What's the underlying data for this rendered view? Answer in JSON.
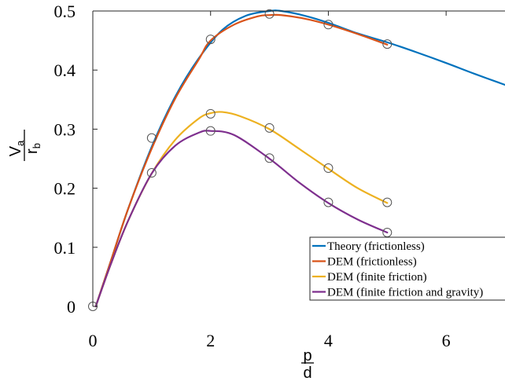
{
  "chart_data": {
    "type": "line",
    "xlim": [
      0,
      7
    ],
    "ylim": [
      0,
      0.5
    ],
    "xticks": [
      0,
      2,
      4,
      6
    ],
    "xtick_labels": [
      "0",
      "2",
      "4",
      "6"
    ],
    "yticks": [
      0,
      0.1,
      0.2,
      0.3,
      0.4,
      0.5
    ],
    "ytick_labels": [
      "0",
      "0.1",
      "0.2",
      "0.3",
      "0.4",
      "0.5"
    ],
    "xlabel": {
      "numerator": "p",
      "denominator": "d"
    },
    "ylabel": {
      "numerator": "V",
      "numerator_sub": "a",
      "denominator": "r",
      "denominator_sub": "b"
    },
    "grid": false,
    "legend_position": "bottom-right",
    "series": [
      {
        "name": "Theory (frictionless)",
        "color": "#0072BD",
        "x": [
          0.05,
          0.3,
          0.6,
          1.0,
          1.4,
          1.8,
          2.2,
          2.6,
          3.0,
          3.2,
          3.6,
          4.0,
          4.5,
          5.0,
          5.5,
          6.0,
          6.5,
          7.0
        ],
        "y": [
          0,
          0.075,
          0.165,
          0.27,
          0.355,
          0.42,
          0.468,
          0.492,
          0.5,
          0.5,
          0.492,
          0.48,
          0.462,
          0.447,
          0.43,
          0.412,
          0.393,
          0.375
        ],
        "markers": false
      },
      {
        "name": "DEM (frictionless)",
        "color": "#D95319",
        "x": [
          0.05,
          0.3,
          0.6,
          1.0,
          1.4,
          1.8,
          2.0,
          2.4,
          2.8,
          3.0,
          3.2,
          3.6,
          4.0,
          4.5,
          5.0
        ],
        "y": [
          0,
          0.075,
          0.165,
          0.267,
          0.352,
          0.418,
          0.45,
          0.477,
          0.491,
          0.493,
          0.493,
          0.487,
          0.477,
          0.461,
          0.443
        ],
        "markers": false
      },
      {
        "name": "DEM (finite friction)",
        "color": "#EDB120",
        "x": [
          0.05,
          0.3,
          0.6,
          1.0,
          1.4,
          1.8,
          2.0,
          2.2,
          2.5,
          3.0,
          3.5,
          4.0,
          4.5,
          5.0
        ],
        "y": [
          0,
          0.07,
          0.145,
          0.225,
          0.282,
          0.318,
          0.327,
          0.329,
          0.322,
          0.3,
          0.267,
          0.233,
          0.2,
          0.175
        ],
        "markers": false
      },
      {
        "name": "DEM (finite friction and gravity)",
        "color": "#7E2F8E",
        "x": [
          0.05,
          0.3,
          0.6,
          1.0,
          1.4,
          1.8,
          2.0,
          2.4,
          3.0,
          3.5,
          4.0,
          4.5,
          5.0
        ],
        "y": [
          0,
          0.07,
          0.145,
          0.225,
          0.272,
          0.294,
          0.297,
          0.29,
          0.25,
          0.21,
          0.175,
          0.147,
          0.125
        ],
        "markers": false
      }
    ],
    "data_points": [
      {
        "x": 0,
        "y": 0
      },
      {
        "x": 1,
        "y": 0.285
      },
      {
        "x": 1,
        "y": 0.226
      },
      {
        "x": 2,
        "y": 0.452
      },
      {
        "x": 2,
        "y": 0.326
      },
      {
        "x": 2,
        "y": 0.297
      },
      {
        "x": 3,
        "y": 0.495
      },
      {
        "x": 3,
        "y": 0.302
      },
      {
        "x": 3,
        "y": 0.251
      },
      {
        "x": 4,
        "y": 0.477
      },
      {
        "x": 4,
        "y": 0.234
      },
      {
        "x": 4,
        "y": 0.176
      },
      {
        "x": 5,
        "y": 0.444
      },
      {
        "x": 5,
        "y": 0.176
      },
      {
        "x": 5,
        "y": 0.125
      }
    ]
  }
}
